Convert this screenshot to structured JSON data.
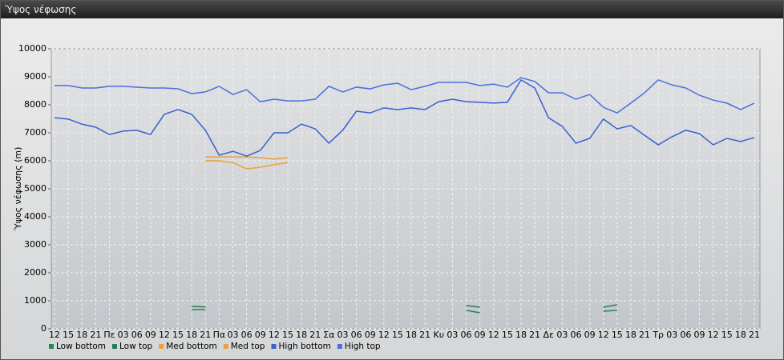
{
  "window_title": "Ύψος νέφωσης",
  "chart_data": {
    "type": "line",
    "ylabel": "Ύψος νέφωσης (m)",
    "categories": [
      "12",
      "15",
      "18",
      "21",
      "Πε",
      "03",
      "06",
      "09",
      "12",
      "15",
      "18",
      "21",
      "Πα",
      "03",
      "06",
      "09",
      "12",
      "15",
      "18",
      "21",
      "Σα",
      "03",
      "06",
      "09",
      "12",
      "15",
      "18",
      "21",
      "Κυ",
      "03",
      "06",
      "09",
      "12",
      "15",
      "18",
      "21",
      "Δε",
      "03",
      "06",
      "09",
      "12",
      "15",
      "18",
      "21",
      "Τρ",
      "03",
      "06",
      "09",
      "12",
      "15",
      "18",
      "21"
    ],
    "ylim": [
      0,
      10000
    ],
    "yticks": [
      0,
      1000,
      2000,
      3000,
      4000,
      5000,
      6000,
      7000,
      8000,
      9000,
      10000
    ],
    "grid": true,
    "legend": "bottom",
    "series": [
      {
        "name": "Low bottom",
        "color": "#1f8a4c",
        "values": [
          null,
          null,
          null,
          null,
          null,
          null,
          null,
          null,
          null,
          null,
          690,
          690,
          null,
          null,
          null,
          null,
          null,
          null,
          null,
          null,
          null,
          null,
          null,
          null,
          null,
          null,
          null,
          null,
          null,
          null,
          660,
          570,
          null,
          null,
          null,
          null,
          null,
          null,
          null,
          null,
          630,
          660,
          null,
          null,
          null,
          null,
          null,
          null,
          null,
          null,
          null,
          null
        ]
      },
      {
        "name": "Low top",
        "color": "#2a7a55",
        "values": [
          null,
          null,
          null,
          null,
          null,
          null,
          null,
          null,
          null,
          null,
          800,
          780,
          null,
          null,
          null,
          null,
          null,
          null,
          null,
          null,
          null,
          null,
          null,
          null,
          null,
          null,
          null,
          null,
          null,
          null,
          830,
          770,
          null,
          null,
          null,
          null,
          null,
          null,
          null,
          null,
          770,
          860,
          null,
          null,
          null,
          null,
          null,
          null,
          null,
          null,
          null,
          null
        ]
      },
      {
        "name": "Med bottom",
        "color": "#f0a030",
        "values": [
          null,
          null,
          null,
          null,
          null,
          null,
          null,
          null,
          null,
          null,
          null,
          6000,
          6000,
          5940,
          5710,
          5770,
          5860,
          5940,
          null,
          null,
          null,
          null,
          null,
          null,
          null,
          null,
          null,
          null,
          null,
          null,
          null,
          null,
          null,
          null,
          null,
          null,
          null,
          null,
          null,
          null,
          null,
          null,
          null,
          null,
          null,
          null,
          null,
          null,
          null,
          null,
          null,
          null
        ]
      },
      {
        "name": "Med top",
        "color": "#e8a040",
        "values": [
          null,
          null,
          null,
          null,
          null,
          null,
          null,
          null,
          null,
          null,
          null,
          6140,
          6140,
          6140,
          6140,
          6110,
          6060,
          6110,
          null,
          null,
          null,
          null,
          null,
          null,
          null,
          null,
          null,
          null,
          null,
          null,
          null,
          null,
          null,
          null,
          null,
          null,
          null,
          null,
          null,
          null,
          null,
          null,
          null,
          null,
          null,
          null,
          null,
          null,
          null,
          null,
          null,
          null
        ]
      },
      {
        "name": "High bottom",
        "color": "#3a5fd0",
        "values": [
          7540,
          7490,
          7310,
          7200,
          6940,
          7060,
          7090,
          6940,
          7660,
          7830,
          7660,
          7090,
          6200,
          6340,
          6170,
          6370,
          7000,
          7000,
          7310,
          7140,
          6630,
          7090,
          7770,
          7710,
          7890,
          7830,
          7890,
          7830,
          8110,
          8200,
          8110,
          8090,
          8060,
          8090,
          8890,
          8600,
          7540,
          7230,
          6630,
          6800,
          7490,
          7140,
          7260,
          6910,
          6570,
          6860,
          7090,
          6970,
          6570,
          6800,
          6690,
          6830
        ]
      },
      {
        "name": "High top",
        "color": "#4a6fe0",
        "values": [
          8690,
          8690,
          8600,
          8600,
          8660,
          8660,
          8630,
          8600,
          8600,
          8570,
          8400,
          8460,
          8660,
          8370,
          8540,
          8110,
          8200,
          8140,
          8140,
          8200,
          8660,
          8460,
          8630,
          8570,
          8710,
          8770,
          8540,
          8660,
          8800,
          8800,
          8800,
          8690,
          8740,
          8630,
          8970,
          8830,
          8430,
          8430,
          8200,
          8370,
          7910,
          7710,
          8060,
          8430,
          8890,
          8710,
          8600,
          8340,
          8170,
          8060,
          7830,
          8060
        ]
      }
    ]
  }
}
